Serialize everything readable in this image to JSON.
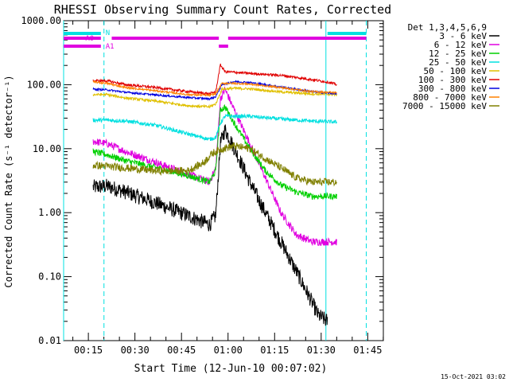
{
  "chart_data": {
    "type": "line",
    "title": "RHESSI Observing Summary Count Rates, Corrected",
    "xlabel": "Start Time (12-Jun-10 00:07:02)",
    "ylabel": "Corrected Count Rate (s⁻¹ detector⁻¹)",
    "footer": "15-Oct-2021 03:02",
    "x_unit": "minutes after 00:07:02",
    "xlim": [
      0,
      103
    ],
    "ylim": [
      0.01,
      1000
    ],
    "yscale": "log",
    "xticks": [
      {
        "m": 7.97,
        "label": "00:15"
      },
      {
        "m": 22.97,
        "label": "00:30"
      },
      {
        "m": 37.97,
        "label": "00:45"
      },
      {
        "m": 52.97,
        "label": "01:00"
      },
      {
        "m": 67.97,
        "label": "01:15"
      },
      {
        "m": 82.97,
        "label": "01:30"
      },
      {
        "m": 97.97,
        "label": "01:45"
      }
    ],
    "yticks": [
      {
        "v": 0.01,
        "label": "0.01"
      },
      {
        "v": 0.1,
        "label": "0.10"
      },
      {
        "v": 1,
        "label": "1.00"
      },
      {
        "v": 10,
        "label": "10.00"
      },
      {
        "v": 100,
        "label": "100.00"
      },
      {
        "v": 1000,
        "label": "1000.00"
      }
    ],
    "legend": {
      "title": "Det 1,3,4,5,6,9",
      "placement": "right"
    },
    "series": [
      {
        "name": "3 - 6 keV",
        "color": "#000000",
        "noise": 0.12,
        "points": [
          [
            9.5,
            2.5
          ],
          [
            14,
            2.6
          ],
          [
            20,
            2.1
          ],
          [
            30,
            1.4
          ],
          [
            40,
            0.9
          ],
          [
            47,
            0.65
          ],
          [
            49,
            0.9
          ],
          [
            50.5,
            12
          ],
          [
            52,
            20
          ],
          [
            56,
            8
          ],
          [
            60,
            3
          ],
          [
            65,
            1.0
          ],
          [
            70,
            0.35
          ],
          [
            75,
            0.12
          ],
          [
            80,
            0.04
          ],
          [
            82,
            0.025
          ],
          [
            85,
            0.02
          ]
        ]
      },
      {
        "name": "6 - 12 keV",
        "color": "#e000e0",
        "noise": 0.06,
        "points": [
          [
            9.5,
            13
          ],
          [
            14,
            12
          ],
          [
            20,
            9
          ],
          [
            30,
            6
          ],
          [
            40,
            4
          ],
          [
            47,
            3
          ],
          [
            49,
            5
          ],
          [
            50.5,
            60
          ],
          [
            52,
            85
          ],
          [
            55,
            40
          ],
          [
            60,
            12
          ],
          [
            65,
            3.5
          ],
          [
            70,
            1.0
          ],
          [
            75,
            0.45
          ],
          [
            80,
            0.35
          ],
          [
            88,
            0.35
          ]
        ]
      },
      {
        "name": "12 - 25 keV",
        "color": "#00d000",
        "noise": 0.05,
        "points": [
          [
            9.5,
            9
          ],
          [
            14,
            8
          ],
          [
            20,
            6.5
          ],
          [
            30,
            5
          ],
          [
            40,
            3.8
          ],
          [
            47,
            3
          ],
          [
            49,
            4.5
          ],
          [
            50.5,
            40
          ],
          [
            52,
            45
          ],
          [
            55,
            25
          ],
          [
            60,
            10
          ],
          [
            65,
            4.5
          ],
          [
            70,
            2.7
          ],
          [
            75,
            2.1
          ],
          [
            80,
            1.8
          ],
          [
            88,
            1.8
          ]
        ]
      },
      {
        "name": "25 - 50 keV",
        "color": "#00e0e0",
        "noise": 0.03,
        "points": [
          [
            9.5,
            28
          ],
          [
            14,
            28
          ],
          [
            20,
            27
          ],
          [
            30,
            23
          ],
          [
            40,
            17
          ],
          [
            47,
            14
          ],
          [
            49,
            15
          ],
          [
            50.5,
            25
          ],
          [
            52,
            32
          ],
          [
            60,
            32
          ],
          [
            70,
            29
          ],
          [
            80,
            27
          ],
          [
            88,
            26
          ]
        ]
      },
      {
        "name": "50 - 100 keV",
        "color": "#e0c000",
        "noise": 0.02,
        "points": [
          [
            9.5,
            70
          ],
          [
            14,
            70
          ],
          [
            20,
            62
          ],
          [
            30,
            55
          ],
          [
            40,
            47
          ],
          [
            47,
            45
          ],
          [
            49,
            50
          ],
          [
            51,
            85
          ],
          [
            55,
            88
          ],
          [
            60,
            86
          ],
          [
            70,
            77
          ],
          [
            80,
            72
          ],
          [
            88,
            70
          ]
        ]
      },
      {
        "name": "100 - 300 keV",
        "color": "#e00000",
        "noise": 0.02,
        "points": [
          [
            9.5,
            115
          ],
          [
            14,
            115
          ],
          [
            20,
            100
          ],
          [
            30,
            90
          ],
          [
            40,
            78
          ],
          [
            47,
            72
          ],
          [
            49,
            78
          ],
          [
            50.5,
            205
          ],
          [
            52,
            160
          ],
          [
            60,
            150
          ],
          [
            70,
            140
          ],
          [
            80,
            120
          ],
          [
            85,
            110
          ],
          [
            88,
            100
          ]
        ]
      },
      {
        "name": "300 - 800 keV",
        "color": "#0000e0",
        "noise": 0.015,
        "points": [
          [
            9.5,
            85
          ],
          [
            14,
            83
          ],
          [
            20,
            76
          ],
          [
            30,
            69
          ],
          [
            40,
            63
          ],
          [
            47,
            60
          ],
          [
            49,
            65
          ],
          [
            51,
            100
          ],
          [
            55,
            112
          ],
          [
            60,
            108
          ],
          [
            70,
            92
          ],
          [
            80,
            78
          ],
          [
            88,
            72
          ]
        ]
      },
      {
        "name": "800 - 7000 keV",
        "color": "#ff8000",
        "noise": 0.015,
        "points": [
          [
            9.5,
            110
          ],
          [
            14,
            105
          ],
          [
            20,
            90
          ],
          [
            30,
            80
          ],
          [
            40,
            70
          ],
          [
            47,
            68
          ],
          [
            49,
            72
          ],
          [
            51,
            105
          ],
          [
            55,
            105
          ],
          [
            60,
            102
          ],
          [
            70,
            90
          ],
          [
            80,
            78
          ],
          [
            88,
            75
          ]
        ]
      },
      {
        "name": "7000 - 15000 keV",
        "color": "#808000",
        "noise": 0.06,
        "points": [
          [
            9.5,
            5.5
          ],
          [
            14,
            5.3
          ],
          [
            20,
            5
          ],
          [
            30,
            4.5
          ],
          [
            40,
            4.5
          ],
          [
            45,
            6
          ],
          [
            48,
            8.5
          ],
          [
            51,
            10
          ],
          [
            55,
            11
          ],
          [
            60,
            10
          ],
          [
            65,
            7
          ],
          [
            70,
            5
          ],
          [
            75,
            3.5
          ],
          [
            80,
            3
          ],
          [
            88,
            3
          ]
        ]
      }
    ],
    "state_bars": [
      {
        "label": "N",
        "color": "#00e0e0",
        "intervals": [
          [
            0,
            12
          ],
          [
            85,
            97.5
          ]
        ]
      },
      {
        "label": "A0",
        "color": "#e000e0",
        "intervals": [
          [
            0,
            12
          ],
          [
            15.5,
            50
          ],
          [
            53,
            97.5
          ]
        ]
      },
      {
        "label": "A1",
        "color": "#e000e0",
        "intervals": [
          [
            0,
            12
          ],
          [
            50,
            53
          ]
        ]
      }
    ],
    "vlines_solid": {
      "color": "#00e0e0",
      "x": [
        0,
        84.5
      ]
    },
    "vlines_dashed": {
      "color": "#00e0e0",
      "x": [
        13,
        97.5
      ]
    }
  }
}
